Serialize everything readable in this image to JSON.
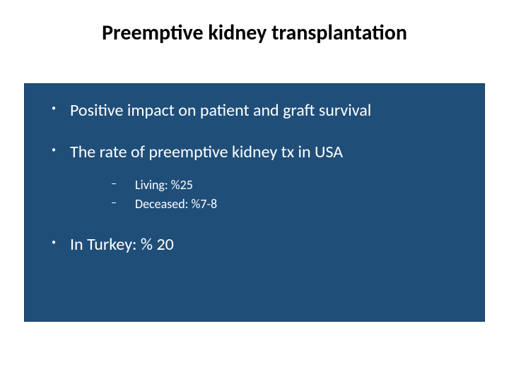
{
  "slide": {
    "title": "Preemptive kidney transplantation",
    "title_fontsize": 30,
    "title_color": "#000000",
    "background_color": "#ffffff",
    "box": {
      "background_color": "#1f4e79",
      "text_color": "#ffffff",
      "border_color": "#163a5a"
    },
    "bullets": [
      {
        "text": "Positive impact on patient and graft survival",
        "sub": []
      },
      {
        "text": "The rate of preemptive kidney tx in USA",
        "sub": [
          {
            "text": "Living: %25"
          },
          {
            "text": "Deceased: %7-8"
          }
        ]
      },
      {
        "text": "In Turkey: % 20",
        "sub": []
      }
    ],
    "level1_fontsize": 24,
    "level2_fontsize": 18
  }
}
